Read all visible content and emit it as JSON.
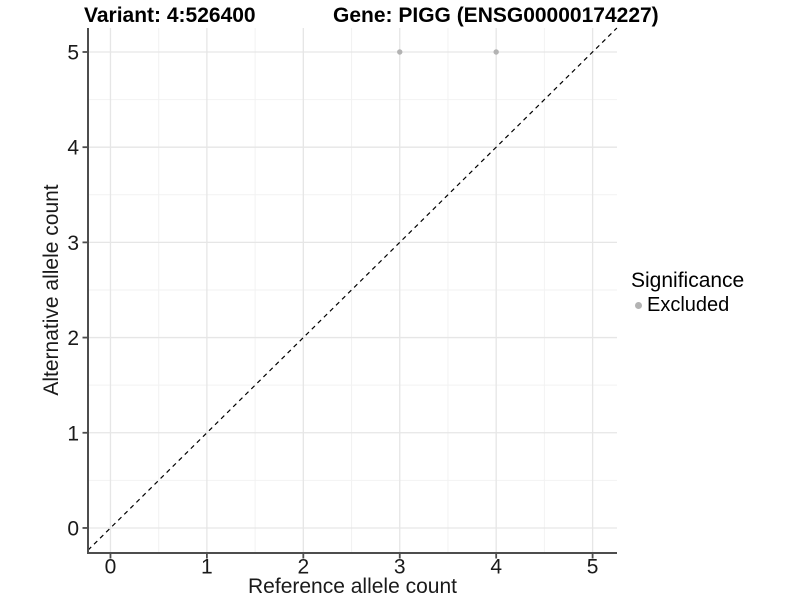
{
  "header": {
    "title_left": "Variant: 4:526400",
    "title_right": "Gene: PIGG (ENSG00000174227)"
  },
  "chart_data": {
    "type": "scatter",
    "title_left": "Variant: 4:526400",
    "title_right": "Gene: PIGG (ENSG00000174227)",
    "xlabel": "Reference allele count",
    "ylabel": "Alternative allele count",
    "xlim": [
      -0.233,
      5.253
    ],
    "ylim": [
      -0.263,
      5.252
    ],
    "x_ticks": [
      0,
      1,
      2,
      3,
      4,
      5
    ],
    "y_ticks": [
      0,
      1,
      2,
      3,
      4,
      5
    ],
    "x_minor": [
      0.5,
      1.5,
      2.5,
      3.5,
      4.5
    ],
    "y_minor": [
      0.5,
      1.5,
      2.5,
      3.5,
      4.5
    ],
    "grid": {
      "show": true,
      "major_color": "#e6e6e6",
      "minor_color": "#f2f2f2"
    },
    "axis_color": "#4d4d4d",
    "identity_line": {
      "equation": "y = x",
      "style": "dashed",
      "color": "#000000"
    },
    "series": [
      {
        "name": "Excluded",
        "color": "#b3b3b3",
        "points": [
          {
            "x": 3,
            "y": 5
          },
          {
            "x": 4,
            "y": 5
          }
        ]
      }
    ],
    "legend": {
      "title": "Significance",
      "position": "right",
      "items": [
        {
          "label": "Excluded",
          "color": "#b3b3b3"
        }
      ]
    }
  }
}
